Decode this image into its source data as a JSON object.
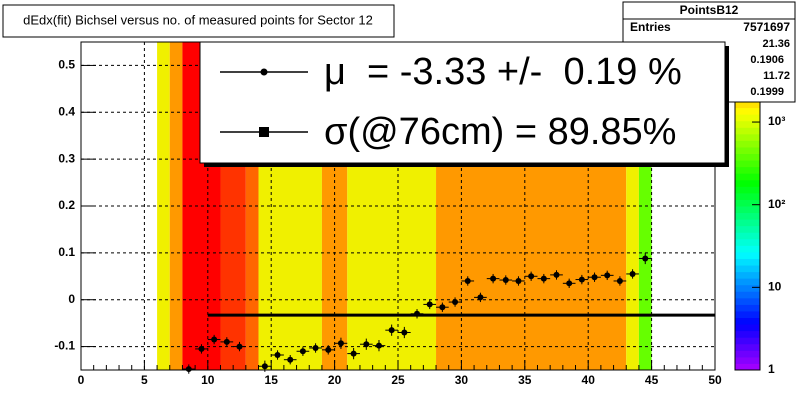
{
  "chart_data": {
    "type": "profile-heatmap",
    "title": "dEdx(fit) Bichsel versus no. of measured points for Sector 12",
    "xlim": [
      0,
      50
    ],
    "xticks": [
      0,
      5,
      10,
      15,
      20,
      25,
      30,
      35,
      40,
      45,
      50
    ],
    "ylim": [
      -0.15,
      0.55
    ],
    "yticks": [
      -0.1,
      0,
      0.1,
      0.2,
      0.3,
      0.4,
      0.5
    ],
    "grid": true,
    "bins": [
      6,
      7,
      8,
      11,
      13,
      14,
      19,
      21,
      28,
      43,
      44,
      45
    ],
    "bin_colors": [
      "#f0f000",
      "#ff9900",
      "#ff0000",
      "#ff3300",
      "#ff6600",
      "#f0f000",
      "#ff9900",
      "#f0f000",
      "#ff9900",
      "#f0f000",
      "#66ff00"
    ],
    "zlim": [
      1,
      9300
    ],
    "zscale": "log",
    "zticks": [
      {
        "value": 1,
        "label": "1"
      },
      {
        "value": 10,
        "label": "10"
      },
      {
        "value": 100,
        "label": "10²"
      },
      {
        "value": 1000,
        "label": "10³"
      }
    ],
    "series": [
      {
        "name": "profile",
        "color": "#000000",
        "x": [
          8.5,
          9.5,
          10.5,
          11.5,
          12.5,
          14.5,
          15.5,
          16.5,
          17.5,
          18.5,
          19.5,
          20.5,
          21.5,
          22.5,
          23.5,
          24.5,
          25.5,
          26.5,
          27.5,
          28.5,
          29.5,
          30.5,
          31.5,
          32.5,
          33.5,
          34.5,
          35.5,
          36.5,
          37.5,
          38.5,
          39.5,
          40.5,
          41.5,
          42.5,
          43.5,
          44.5
        ],
        "values": [
          -0.148,
          -0.105,
          -0.085,
          -0.09,
          -0.1,
          -0.142,
          -0.118,
          -0.128,
          -0.11,
          -0.103,
          -0.107,
          -0.093,
          -0.115,
          -0.095,
          -0.098,
          -0.065,
          -0.07,
          -0.03,
          -0.01,
          -0.016,
          -0.005,
          0.04,
          0.005,
          0.045,
          0.042,
          0.04,
          0.05,
          0.045,
          0.053,
          0.035,
          0.043,
          0.048,
          0.052,
          0.04,
          0.055,
          0.088
        ],
        "errors": [
          0.01,
          0.01,
          0.01,
          0.01,
          0.01,
          0.012,
          0.01,
          0.01,
          0.01,
          0.01,
          0.01,
          0.012,
          0.012,
          0.012,
          0.012,
          0.012,
          0.012,
          0.01,
          0.01,
          0.01,
          0.01,
          0.01,
          0.01,
          0.01,
          0.01,
          0.01,
          0.01,
          0.01,
          0.01,
          0.01,
          0.01,
          0.01,
          0.01,
          0.01,
          0.01,
          0.012
        ]
      }
    ],
    "fit_line": {
      "x": [
        10,
        50
      ],
      "y": -0.033,
      "color": "#000000"
    },
    "legend": [
      "μ  = -3.33 +/-  0.19 %",
      "σ(@76cm) = 89.85%"
    ],
    "stats": {
      "title": "PointsB12",
      "label": "Entries",
      "entries": "7571697",
      "values": [
        "21.36",
        "0.1906",
        "11.72",
        "0.1999"
      ]
    }
  }
}
